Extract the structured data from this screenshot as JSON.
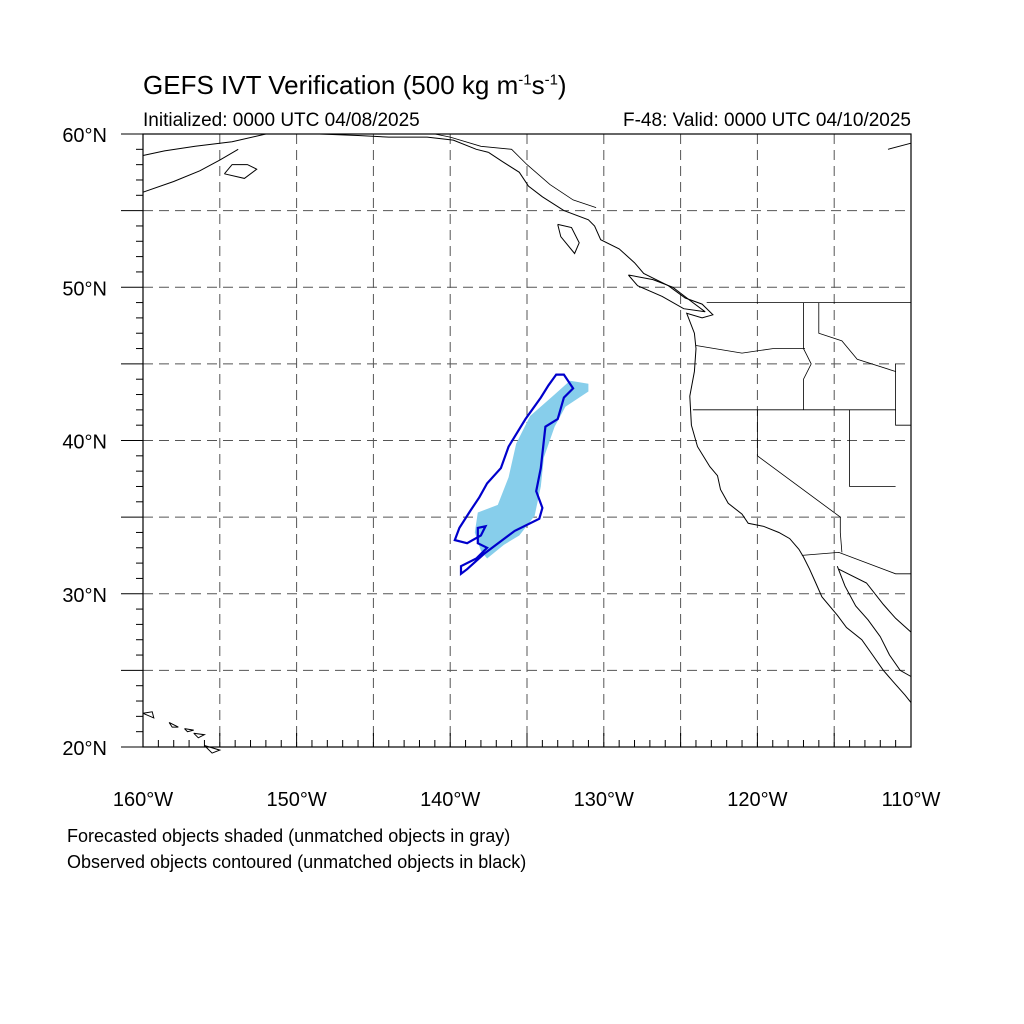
{
  "title": {
    "main": "GEFS IVT Verification (500 kg m",
    "exp1": "-1",
    "mid": "s",
    "exp2": "-1",
    "end": ")"
  },
  "initialized": "Initialized: 0000 UTC 04/08/2025",
  "valid": "F-48: Valid: 0000 UTC 04/10/2025",
  "notes": {
    "forecast": "Forecasted objects shaded (unmatched objects in gray)",
    "observed": "Observed objects contoured (unmatched objects in black)"
  },
  "colors": {
    "forecast_fill": "#87ceeb",
    "observed_contour": "#0000cc",
    "coastline": "#000000",
    "grid": "#555555"
  },
  "map": {
    "projection": "cylindrical equidistant",
    "lon_range": [
      -160,
      -110
    ],
    "lat_range": [
      20,
      60
    ],
    "grid_spacing_deg": 5,
    "grid_style": "dashed",
    "xticks": [
      {
        "lon": -160,
        "label": "160°W"
      },
      {
        "lon": -150,
        "label": "150°W"
      },
      {
        "lon": -140,
        "label": "140°W"
      },
      {
        "lon": -130,
        "label": "130°W"
      },
      {
        "lon": -120,
        "label": "120°W"
      },
      {
        "lon": -110,
        "label": "110°W"
      }
    ],
    "yticks": [
      {
        "lat": 60,
        "label": "60°N"
      },
      {
        "lat": 50,
        "label": "50°N"
      },
      {
        "lat": 40,
        "label": "40°N"
      },
      {
        "lat": 30,
        "label": "30°N"
      },
      {
        "lat": 20,
        "label": "20°N"
      }
    ],
    "forecast_object": [
      [
        -131.0,
        43.7
      ],
      [
        -131.0,
        43.2
      ],
      [
        -132.5,
        42.2
      ],
      [
        -133.2,
        40.9
      ],
      [
        -133.9,
        38.9
      ],
      [
        -134.1,
        37.0
      ],
      [
        -134.5,
        35.1
      ],
      [
        -135.5,
        33.8
      ],
      [
        -136.5,
        33.2
      ],
      [
        -137.6,
        32.3
      ],
      [
        -138.0,
        32.8
      ],
      [
        -138.4,
        34.0
      ],
      [
        -138.2,
        35.3
      ],
      [
        -136.9,
        35.8
      ],
      [
        -136.2,
        37.6
      ],
      [
        -135.7,
        39.8
      ],
      [
        -134.8,
        41.6
      ],
      [
        -133.2,
        43.0
      ],
      [
        -132.2,
        43.9
      ]
    ],
    "observed_object": [
      [
        -132.6,
        44.3
      ],
      [
        -132.0,
        43.4
      ],
      [
        -132.6,
        42.8
      ],
      [
        -133.0,
        41.4
      ],
      [
        -133.8,
        40.9
      ],
      [
        -134.1,
        38.2
      ],
      [
        -134.4,
        36.7
      ],
      [
        -134.0,
        35.6
      ],
      [
        -134.2,
        34.9
      ],
      [
        -135.8,
        34.1
      ],
      [
        -137.8,
        32.6
      ],
      [
        -138.9,
        31.6
      ],
      [
        -139.3,
        31.3
      ],
      [
        -139.3,
        31.8
      ],
      [
        -138.3,
        32.3
      ],
      [
        -137.6,
        33.0
      ],
      [
        -138.2,
        33.3
      ],
      [
        -138.2,
        34.3
      ],
      [
        -137.7,
        34.4
      ],
      [
        -138.0,
        33.8
      ],
      [
        -138.9,
        33.3
      ],
      [
        -139.7,
        33.5
      ],
      [
        -139.4,
        34.3
      ],
      [
        -138.7,
        35.4
      ],
      [
        -138.1,
        36.3
      ],
      [
        -137.6,
        37.2
      ],
      [
        -136.7,
        38.2
      ],
      [
        -136.2,
        39.6
      ],
      [
        -135.1,
        41.4
      ],
      [
        -134.1,
        42.8
      ],
      [
        -133.6,
        43.6
      ],
      [
        -133.1,
        44.3
      ]
    ],
    "coastlines": [
      [
        [
          -137.5,
          58.8
        ],
        [
          -136.6,
          58.2
        ],
        [
          -135.5,
          57.5
        ],
        [
          -134.9,
          56.6
        ],
        [
          -134.0,
          55.9
        ],
        [
          -132.6,
          55.0
        ],
        [
          -131.0,
          54.4
        ],
        [
          -130.6,
          54.0
        ],
        [
          -130.2,
          53.1
        ],
        [
          -129.0,
          52.5
        ],
        [
          -128.0,
          51.6
        ],
        [
          -127.4,
          50.9
        ],
        [
          -125.8,
          50.1
        ],
        [
          -124.7,
          49.3
        ],
        [
          -123.6,
          48.9
        ],
        [
          -122.9,
          48.2
        ],
        [
          -123.6,
          48.0
        ],
        [
          -124.6,
          48.3
        ],
        [
          -124.1,
          47.0
        ],
        [
          -124.0,
          46.0
        ],
        [
          -124.1,
          44.5
        ],
        [
          -124.4,
          42.9
        ],
        [
          -124.3,
          41.0
        ],
        [
          -123.9,
          39.6
        ],
        [
          -123.1,
          38.3
        ],
        [
          -122.6,
          37.7
        ],
        [
          -122.4,
          36.8
        ],
        [
          -121.9,
          35.9
        ],
        [
          -121.0,
          35.2
        ],
        [
          -120.6,
          34.6
        ],
        [
          -119.6,
          34.4
        ],
        [
          -118.6,
          34.0
        ],
        [
          -117.9,
          33.6
        ],
        [
          -117.3,
          32.9
        ],
        [
          -117.0,
          32.4
        ],
        [
          -116.6,
          31.6
        ],
        [
          -116.2,
          30.7
        ],
        [
          -115.8,
          29.8
        ],
        [
          -114.8,
          28.6
        ],
        [
          -114.2,
          27.8
        ],
        [
          -113.2,
          27.0
        ],
        [
          -112.5,
          26.0
        ],
        [
          -111.8,
          25.0
        ],
        [
          -111.2,
          24.3
        ],
        [
          -110.4,
          23.4
        ],
        [
          -110.0,
          22.9
        ]
      ],
      [
        [
          -114.8,
          31.8
        ],
        [
          -114.3,
          30.5
        ],
        [
          -113.6,
          29.2
        ],
        [
          -112.8,
          28.3
        ],
        [
          -112.0,
          27.2
        ],
        [
          -111.4,
          26.0
        ],
        [
          -110.7,
          25.0
        ],
        [
          -110.0,
          24.6
        ]
      ],
      [
        [
          -110.0,
          27.5
        ],
        [
          -111.0,
          28.4
        ],
        [
          -111.8,
          29.3
        ],
        [
          -112.9,
          30.7
        ],
        [
          -114.7,
          31.6
        ]
      ],
      [
        [
          -133.0,
          54.1
        ],
        [
          -132.1,
          53.9
        ],
        [
          -131.6,
          52.9
        ],
        [
          -131.9,
          52.2
        ],
        [
          -132.8,
          53.3
        ],
        [
          -133.0,
          54.1
        ]
      ],
      [
        [
          -128.4,
          50.8
        ],
        [
          -126.8,
          50.5
        ],
        [
          -125.5,
          50.0
        ],
        [
          -124.2,
          49.0
        ],
        [
          -123.4,
          48.4
        ],
        [
          -124.8,
          48.6
        ],
        [
          -126.2,
          49.4
        ],
        [
          -127.8,
          50.1
        ],
        [
          -128.4,
          50.8
        ]
      ],
      [
        [
          -160.0,
          58.6
        ],
        [
          -158.6,
          58.9
        ],
        [
          -156.6,
          59.2
        ],
        [
          -154.2,
          59.5
        ],
        [
          -152.0,
          60.0
        ]
      ],
      [
        [
          -160.0,
          56.2
        ],
        [
          -158.0,
          56.9
        ],
        [
          -156.3,
          57.6
        ],
        [
          -155.0,
          58.3
        ],
        [
          -153.8,
          59.0
        ]
      ],
      [
        [
          -154.7,
          57.4
        ],
        [
          -153.4,
          57.1
        ],
        [
          -152.6,
          57.7
        ],
        [
          -153.2,
          58.0
        ],
        [
          -154.2,
          58.0
        ],
        [
          -154.7,
          57.4
        ]
      ],
      [
        [
          -148.5,
          60.0
        ],
        [
          -146.0,
          59.9
        ],
        [
          -144.0,
          59.8
        ],
        [
          -141.5,
          59.8
        ],
        [
          -139.8,
          59.6
        ],
        [
          -138.3,
          59.0
        ],
        [
          -137.5,
          58.8
        ]
      ],
      [
        [
          -111.5,
          59.0
        ],
        [
          -110.0,
          59.4
        ]
      ],
      [
        [
          -160.0,
          22.2
        ],
        [
          -159.4,
          22.3
        ],
        [
          -159.3,
          21.9
        ],
        [
          -160.0,
          22.2
        ]
      ],
      [
        [
          -158.3,
          21.6
        ],
        [
          -157.7,
          21.3
        ],
        [
          -158.1,
          21.3
        ],
        [
          -158.3,
          21.6
        ]
      ],
      [
        [
          -157.3,
          21.2
        ],
        [
          -156.7,
          21.1
        ],
        [
          -157.1,
          21.0
        ],
        [
          -157.3,
          21.2
        ]
      ],
      [
        [
          -156.7,
          20.9
        ],
        [
          -156.0,
          20.8
        ],
        [
          -156.4,
          20.6
        ],
        [
          -156.7,
          20.9
        ]
      ],
      [
        [
          -156.0,
          20.1
        ],
        [
          -155.0,
          19.8
        ],
        [
          -155.5,
          19.6
        ],
        [
          -156.0,
          20.1
        ]
      ]
    ],
    "boundaries": [
      [
        [
          -141.0,
          60.0
        ],
        [
          -140.0,
          59.8
        ],
        [
          -138.0,
          59.2
        ],
        [
          -136.0,
          59.0
        ],
        [
          -135.0,
          58.0
        ],
        [
          -133.5,
          56.7
        ],
        [
          -132.0,
          55.7
        ],
        [
          -130.5,
          55.2
        ]
      ],
      [
        [
          -123.3,
          49.0
        ],
        [
          -110.0,
          49.0
        ]
      ],
      [
        [
          -117.0,
          49.0
        ],
        [
          -117.0,
          46.0
        ],
        [
          -116.8,
          45.6
        ],
        [
          -116.5,
          45.0
        ],
        [
          -117.0,
          44.0
        ],
        [
          -117.0,
          42.0
        ]
      ],
      [
        [
          -124.0,
          46.2
        ],
        [
          -121.0,
          45.7
        ],
        [
          -119.0,
          46.0
        ],
        [
          -116.9,
          46.0
        ]
      ],
      [
        [
          -124.2,
          42.0
        ],
        [
          -111.0,
          42.0
        ]
      ],
      [
        [
          -120.0,
          42.0
        ],
        [
          -120.0,
          39.0
        ],
        [
          -114.6,
          35.0
        ],
        [
          -114.6,
          34.0
        ],
        [
          -114.5,
          32.7
        ]
      ],
      [
        [
          -114.0,
          42.0
        ],
        [
          -114.0,
          37.0
        ],
        [
          -111.0,
          37.0
        ]
      ],
      [
        [
          -116.0,
          49.0
        ],
        [
          -116.0,
          47.0
        ],
        [
          -114.5,
          46.5
        ],
        [
          -113.5,
          45.3
        ],
        [
          -111.0,
          44.5
        ]
      ],
      [
        [
          -117.1,
          32.5
        ],
        [
          -114.7,
          32.7
        ],
        [
          -111.0,
          31.3
        ],
        [
          -110.0,
          31.3
        ]
      ],
      [
        [
          -111.0,
          45.0
        ],
        [
          -111.0,
          41.0
        ],
        [
          -110.0,
          41.0
        ]
      ]
    ]
  }
}
